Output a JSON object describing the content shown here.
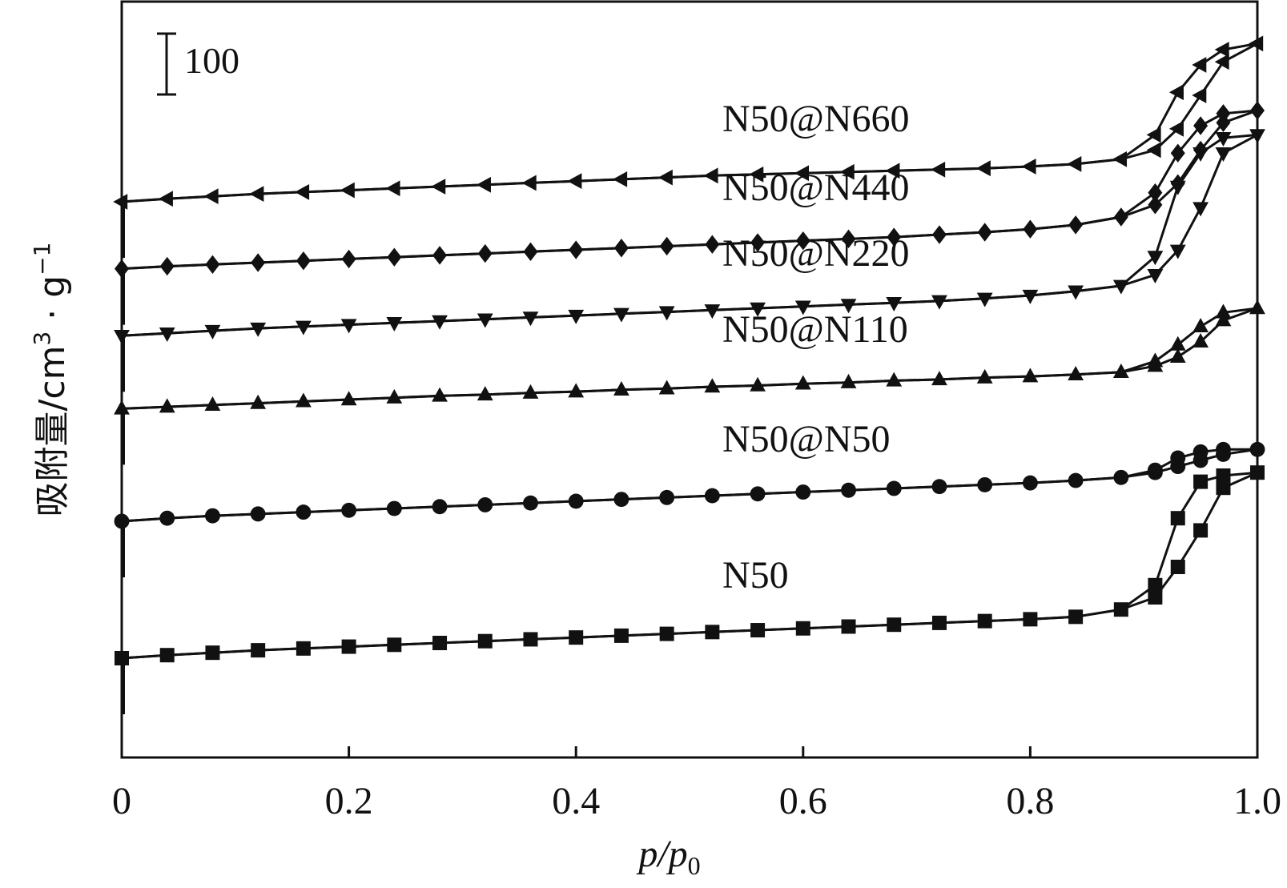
{
  "chart_data": {
    "type": "line",
    "title": "",
    "xlabel": {
      "base": "p/p",
      "sub": "0"
    },
    "ylabel": {
      "main": "吸附量/cm",
      "sup1": "3",
      "sep": " · g",
      "sup2": "−1"
    },
    "xlim": [
      0,
      1.0
    ],
    "x_ticks": [
      "0",
      "0.2",
      "0.4",
      "0.6",
      "0.8",
      "1.0"
    ],
    "grid": false,
    "legend": "none",
    "scale_bar": {
      "label": "100",
      "value": 100
    },
    "color": "#111111",
    "x": [
      0.0,
      0.04,
      0.08,
      0.12,
      0.16,
      0.2,
      0.24,
      0.28,
      0.32,
      0.36,
      0.4,
      0.44,
      0.48,
      0.52,
      0.56,
      0.6,
      0.64,
      0.68,
      0.72,
      0.76,
      0.8,
      0.84,
      0.88,
      0.91,
      0.93,
      0.95,
      0.97,
      1.0
    ],
    "series": [
      {
        "name": "N50",
        "marker": "square",
        "offset": 0,
        "adsorption": [
          0,
          5,
          9,
          13,
          16,
          19,
          22,
          25,
          28,
          31,
          34,
          37,
          40,
          43,
          46,
          49,
          52,
          55,
          58,
          61,
          64,
          68,
          80,
          100,
          150,
          210,
          280,
          305
        ],
        "desorption": [
          0,
          5,
          9,
          13,
          16,
          19,
          22,
          25,
          28,
          31,
          34,
          37,
          40,
          43,
          46,
          49,
          52,
          55,
          58,
          61,
          64,
          68,
          80,
          120,
          230,
          290,
          300,
          305
        ]
      },
      {
        "name": "N50@N50",
        "marker": "circle",
        "offset": 225,
        "adsorption": [
          0,
          5,
          9,
          12,
          15,
          18,
          21,
          24,
          27,
          30,
          33,
          36,
          39,
          42,
          45,
          48,
          51,
          54,
          57,
          60,
          63,
          67,
          72,
          80,
          90,
          100,
          110,
          118
        ],
        "desorption": [
          0,
          5,
          9,
          12,
          15,
          18,
          21,
          24,
          27,
          30,
          33,
          36,
          39,
          42,
          45,
          48,
          51,
          54,
          57,
          60,
          63,
          67,
          72,
          84,
          104,
          114,
          118,
          118
        ]
      },
      {
        "name": "N50@N110",
        "marker": "triangle-up",
        "offset": 410,
        "adsorption": [
          0,
          3,
          6,
          9,
          12,
          15,
          18,
          21,
          23,
          26,
          28,
          31,
          33,
          36,
          38,
          41,
          43,
          46,
          48,
          51,
          53,
          56,
          60,
          70,
          85,
          110,
          145,
          165
        ],
        "desorption": [
          0,
          3,
          6,
          9,
          12,
          15,
          18,
          21,
          23,
          26,
          28,
          31,
          33,
          36,
          38,
          41,
          43,
          46,
          48,
          51,
          53,
          56,
          60,
          78,
          105,
          135,
          158,
          165
        ]
      },
      {
        "name": "N50@N220",
        "marker": "triangle-down",
        "offset": 530,
        "adsorption": [
          0,
          4,
          8,
          12,
          15,
          18,
          21,
          24,
          27,
          30,
          33,
          36,
          39,
          42,
          45,
          48,
          51,
          54,
          57,
          61,
          66,
          73,
          82,
          100,
          140,
          210,
          300,
          330
        ],
        "desorption": [
          0,
          4,
          8,
          12,
          15,
          18,
          21,
          24,
          27,
          30,
          33,
          36,
          39,
          42,
          45,
          48,
          51,
          54,
          57,
          61,
          66,
          73,
          82,
          130,
          245,
          300,
          325,
          330
        ]
      },
      {
        "name": "N50@N440",
        "marker": "diamond",
        "offset": 640,
        "adsorption": [
          0,
          4,
          7,
          10,
          13,
          16,
          19,
          22,
          25,
          28,
          31,
          34,
          37,
          40,
          43,
          46,
          49,
          52,
          56,
          60,
          65,
          72,
          85,
          105,
          140,
          195,
          240,
          260
        ],
        "desorption": [
          0,
          4,
          7,
          10,
          13,
          16,
          19,
          22,
          25,
          28,
          31,
          34,
          37,
          40,
          43,
          46,
          49,
          52,
          56,
          60,
          65,
          72,
          85,
          125,
          190,
          235,
          255,
          260
        ]
      },
      {
        "name": "N50@N660",
        "marker": "triangle-left",
        "offset": 750,
        "adsorption": [
          0,
          5,
          9,
          13,
          16,
          19,
          22,
          25,
          28,
          31,
          34,
          37,
          40,
          43,
          45,
          47,
          49,
          51,
          53,
          55,
          58,
          62,
          70,
          85,
          120,
          175,
          230,
          260
        ],
        "desorption": [
          0,
          5,
          9,
          13,
          16,
          19,
          22,
          25,
          28,
          31,
          34,
          37,
          40,
          43,
          45,
          47,
          49,
          51,
          53,
          55,
          58,
          62,
          70,
          110,
          180,
          225,
          250,
          260
        ]
      }
    ]
  }
}
